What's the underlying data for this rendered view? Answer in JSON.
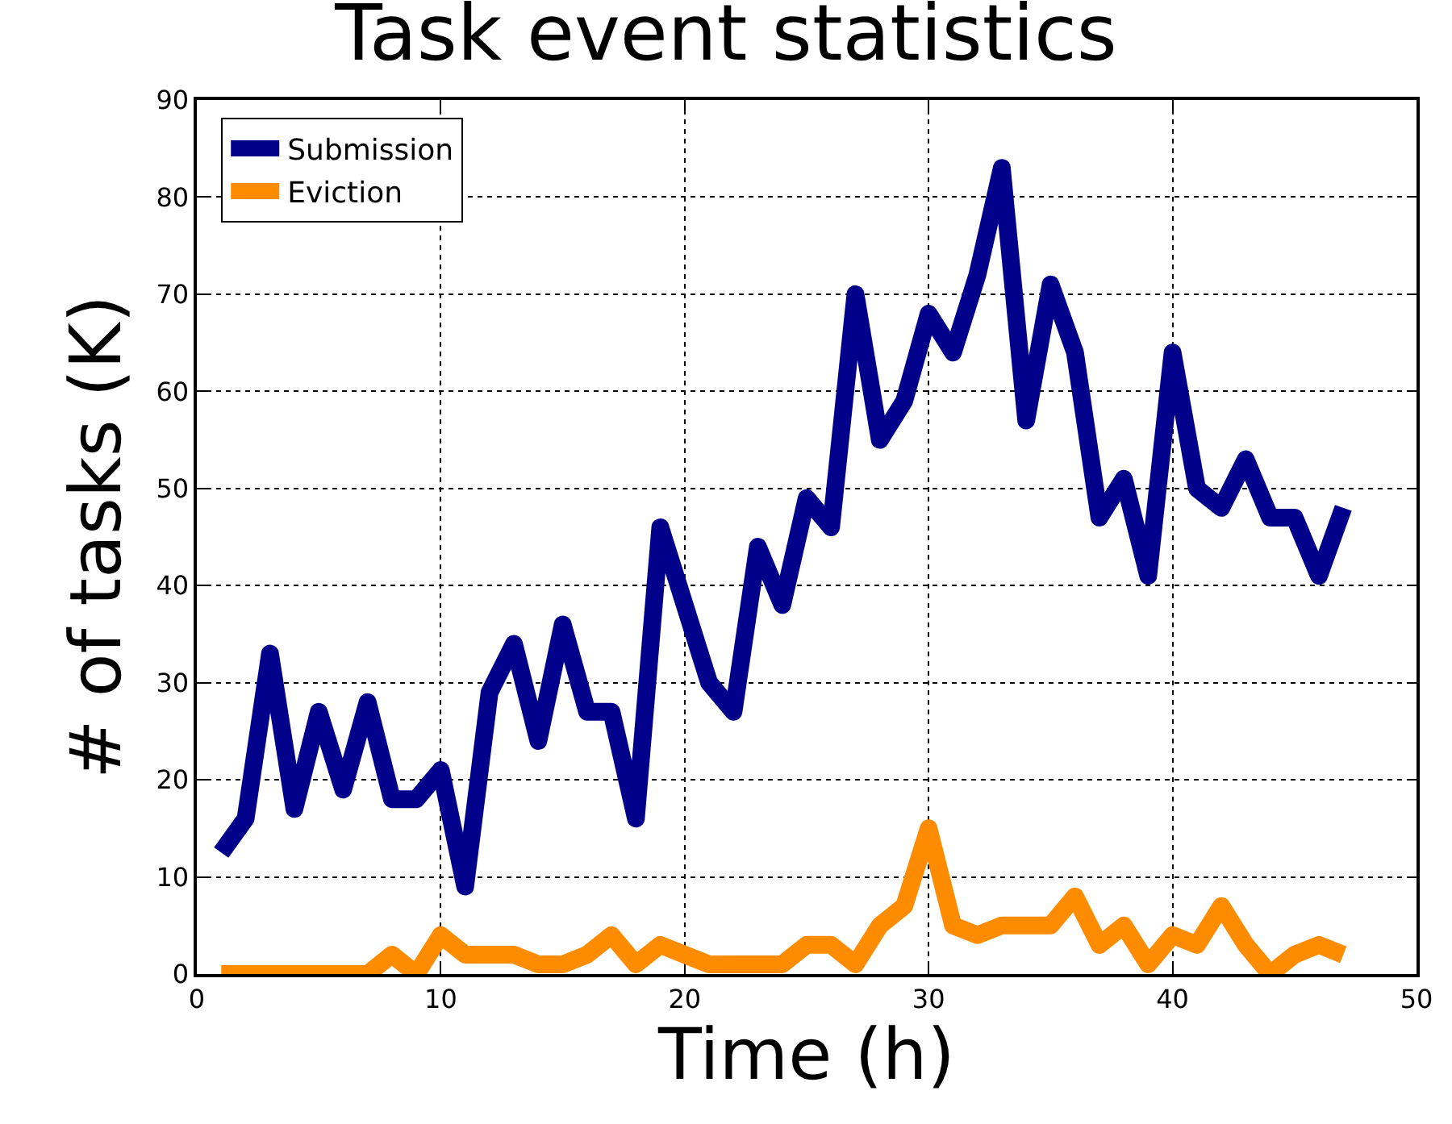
{
  "chart_data": {
    "type": "line",
    "title": "Task event statistics",
    "xlabel": "Time (h)",
    "ylabel": "# of tasks (K)",
    "x": [
      1,
      2,
      3,
      4,
      5,
      6,
      7,
      8,
      9,
      10,
      11,
      12,
      13,
      14,
      15,
      16,
      17,
      18,
      19,
      20,
      21,
      22,
      23,
      24,
      25,
      26,
      27,
      28,
      29,
      30,
      31,
      32,
      33,
      34,
      35,
      36,
      37,
      38,
      39,
      40,
      41,
      42,
      43,
      44,
      45,
      46,
      47
    ],
    "series": [
      {
        "name": "Submission",
        "color": "#00008b",
        "values": [
          12.5,
          16,
          33,
          17,
          27,
          19,
          28,
          18,
          18,
          21,
          9,
          29,
          34,
          24,
          36,
          27,
          27,
          16,
          46,
          38,
          30,
          27,
          44,
          38,
          49,
          46,
          70,
          55,
          59,
          68,
          64,
          72,
          83,
          57,
          71,
          64,
          47,
          51,
          41,
          64,
          50,
          48,
          53,
          47,
          47,
          41,
          48
        ]
      },
      {
        "name": "Eviction",
        "color": "#ff8c00",
        "values": [
          0,
          0,
          0,
          0,
          0,
          0,
          0,
          2,
          0,
          4,
          2,
          2,
          2,
          1,
          1,
          2,
          4,
          1,
          3,
          2,
          1,
          1,
          1,
          1,
          3,
          3,
          1,
          5,
          7,
          15,
          5,
          4,
          5,
          5,
          5,
          8,
          3,
          5,
          1,
          4,
          3,
          7,
          3,
          0,
          2,
          3,
          2
        ]
      }
    ],
    "xlim": [
      0,
      50
    ],
    "xticks": [
      0,
      10,
      20,
      30,
      40,
      50
    ],
    "ylim": [
      0,
      90
    ],
    "yticks": [
      0,
      10,
      20,
      30,
      40,
      50,
      60,
      70,
      80,
      90
    ],
    "grid": true,
    "legend": "top left",
    "marker": "none",
    "line_style": "solid"
  }
}
